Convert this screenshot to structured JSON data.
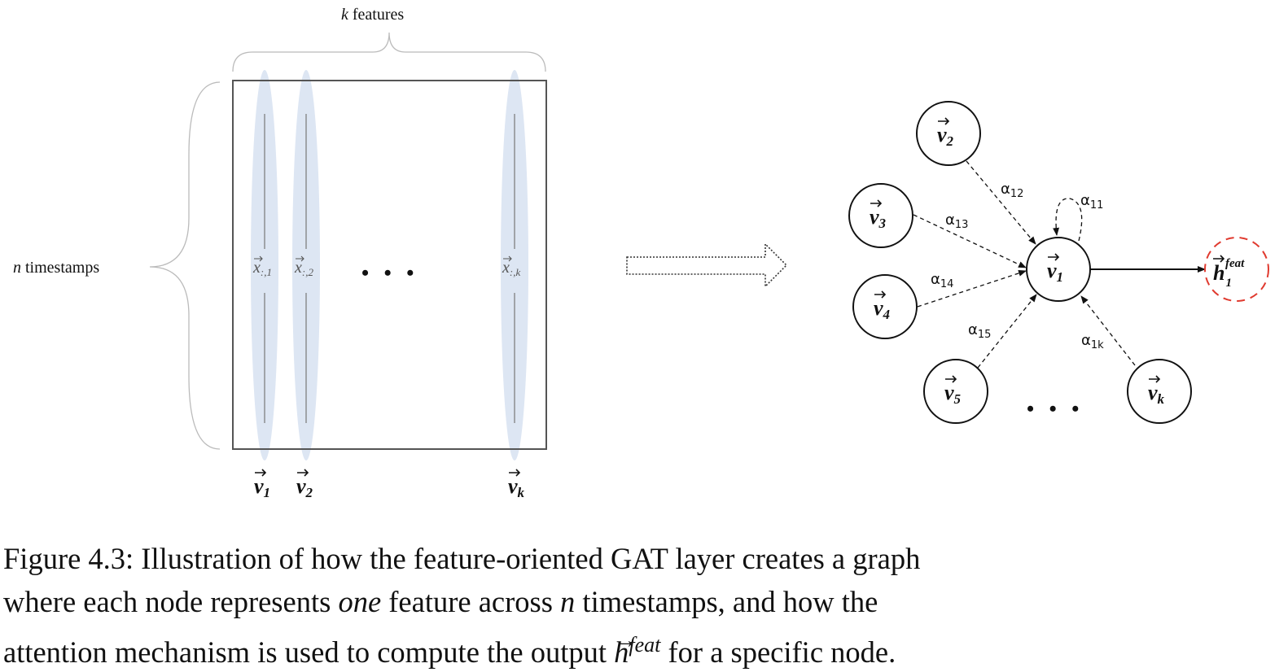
{
  "left_panel": {
    "top_label_var": "k",
    "top_label_text": " features",
    "side_label_var": "n",
    "side_label_text": " timestamps",
    "columns": [
      {
        "x_label": "x",
        "x_sub": ":,1",
        "v_label": "v",
        "v_sub": "1"
      },
      {
        "x_label": "x",
        "x_sub": ":,2",
        "v_label": "v",
        "v_sub": "2"
      },
      {
        "x_label": "x",
        "x_sub": ":,k",
        "v_label": "v",
        "v_sub": "k"
      }
    ],
    "ellipsis": "• • •"
  },
  "graph": {
    "nodes": {
      "v2": {
        "base": "v",
        "sub": "2"
      },
      "v3": {
        "base": "v",
        "sub": "3"
      },
      "v4": {
        "base": "v",
        "sub": "4"
      },
      "v5": {
        "base": "v",
        "sub": "5"
      },
      "vk": {
        "base": "v",
        "sub": "k"
      },
      "v1": {
        "base": "v",
        "sub": "1"
      },
      "h1": {
        "base": "h",
        "sub": "1",
        "sup": "feat"
      }
    },
    "edges": {
      "a12": {
        "base": "α",
        "sub": "12"
      },
      "a11": {
        "base": "α",
        "sub": "11"
      },
      "a13": {
        "base": "α",
        "sub": "13"
      },
      "a14": {
        "base": "α",
        "sub": "14"
      },
      "a15": {
        "base": "α",
        "sub": "15"
      },
      "a1k": {
        "base": "α",
        "sub": "1k"
      }
    },
    "ellipsis": "• • •",
    "output_color": "#e03a2f"
  },
  "caption": {
    "line1": "Figure 4.3: Illustration of how the feature-oriented GAT layer creates a graph",
    "line2_a": "where each node represents ",
    "line2_em": "one",
    "line2_b": " feature across ",
    "line2_n": "n",
    "line2_c": " timestamps, and how the",
    "line3_a": "attention mechanism is used to compute the output ",
    "line3_h": "h",
    "line3_sup": "feat",
    "line3_b": " for a specific node."
  }
}
